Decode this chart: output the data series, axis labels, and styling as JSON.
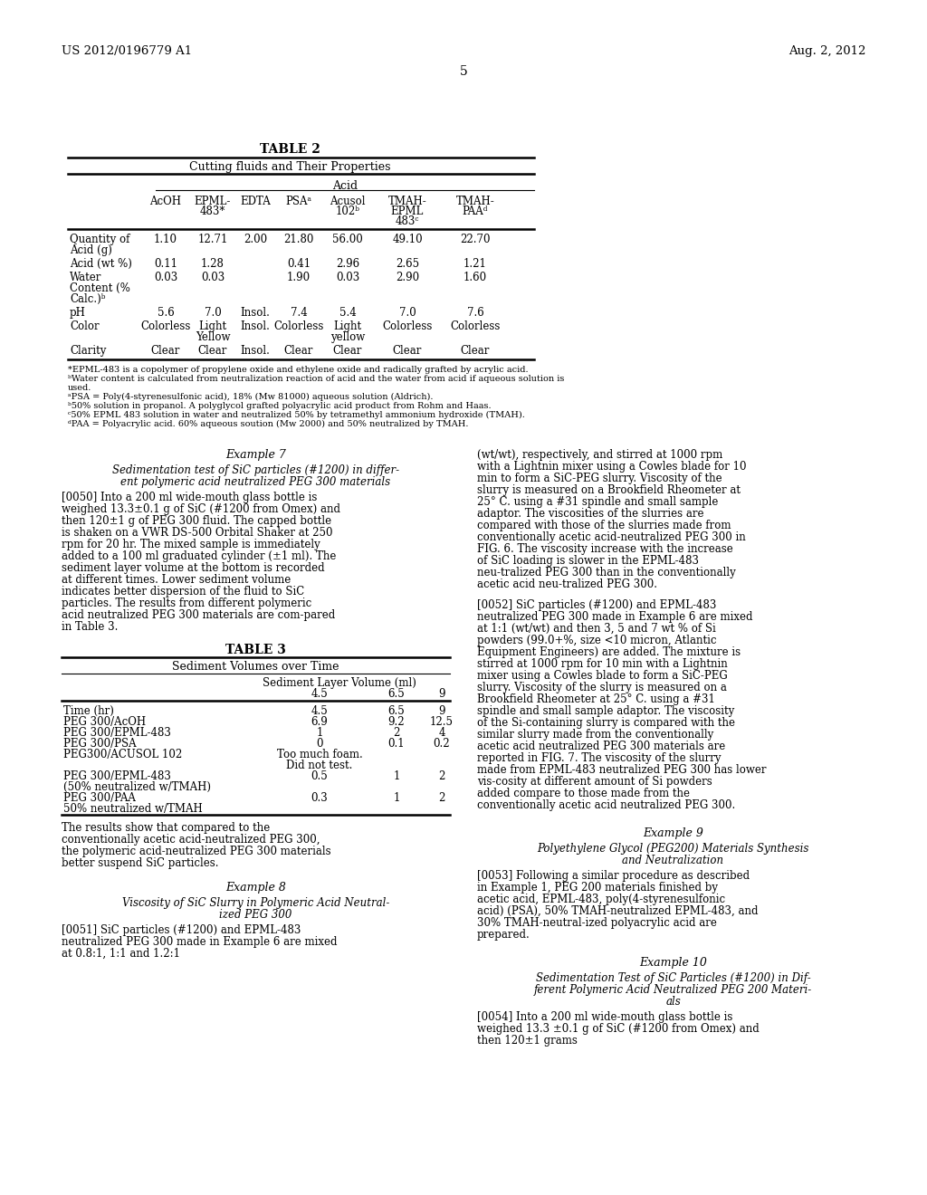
{
  "bg_color": "#ffffff",
  "header_left": "US 2012/0196779 A1",
  "header_right": "Aug. 2, 2012",
  "page_number": "5",
  "table2_title": "TABLE 2",
  "table2_subtitle": "Cutting fluids and Their Properties",
  "table2_group_header": "Acid",
  "table2_col_labels": [
    "",
    "AcOH",
    "EPML-\n483*",
    "EDTA",
    "PSAᵃ",
    "Acusol\n102ᵇ",
    "TMAH-\nEPML\n483ᶜ",
    "TMAH-\nPAAᵈ"
  ],
  "table2_footnotes": [
    "*EPML-483 is a copolymer of propylene oxide and ethylene oxide and radically grafted by acrylic acid.",
    "ᵇWater content is calculated from neutralization reaction of acid and the water from acid if aqueous solution is",
    "used.",
    "ᵃPSA = Poly(4-styrenesulfonic acid), 18% (Mw 81000) aqueous solution (Aldrich).",
    "ᵇˠ50% solution in propanol. A polyglycol grafted polyacrylic acid product from Rohm and Haas.",
    "ᶜ50% EPML 483 solution in water and neutralized 50% by tetramethyl ammonium hydroxide (TMAH).",
    "ᵈPAA = Polyacrylic acid. 60% aqueous soution (Mw 2000) and 50% neutralized by TMAH."
  ],
  "table3_title": "TABLE 3",
  "table3_subtitle": "Sediment Volumes over Time",
  "table3_subsubtitle": "Sediment Layer Volume (ml)"
}
